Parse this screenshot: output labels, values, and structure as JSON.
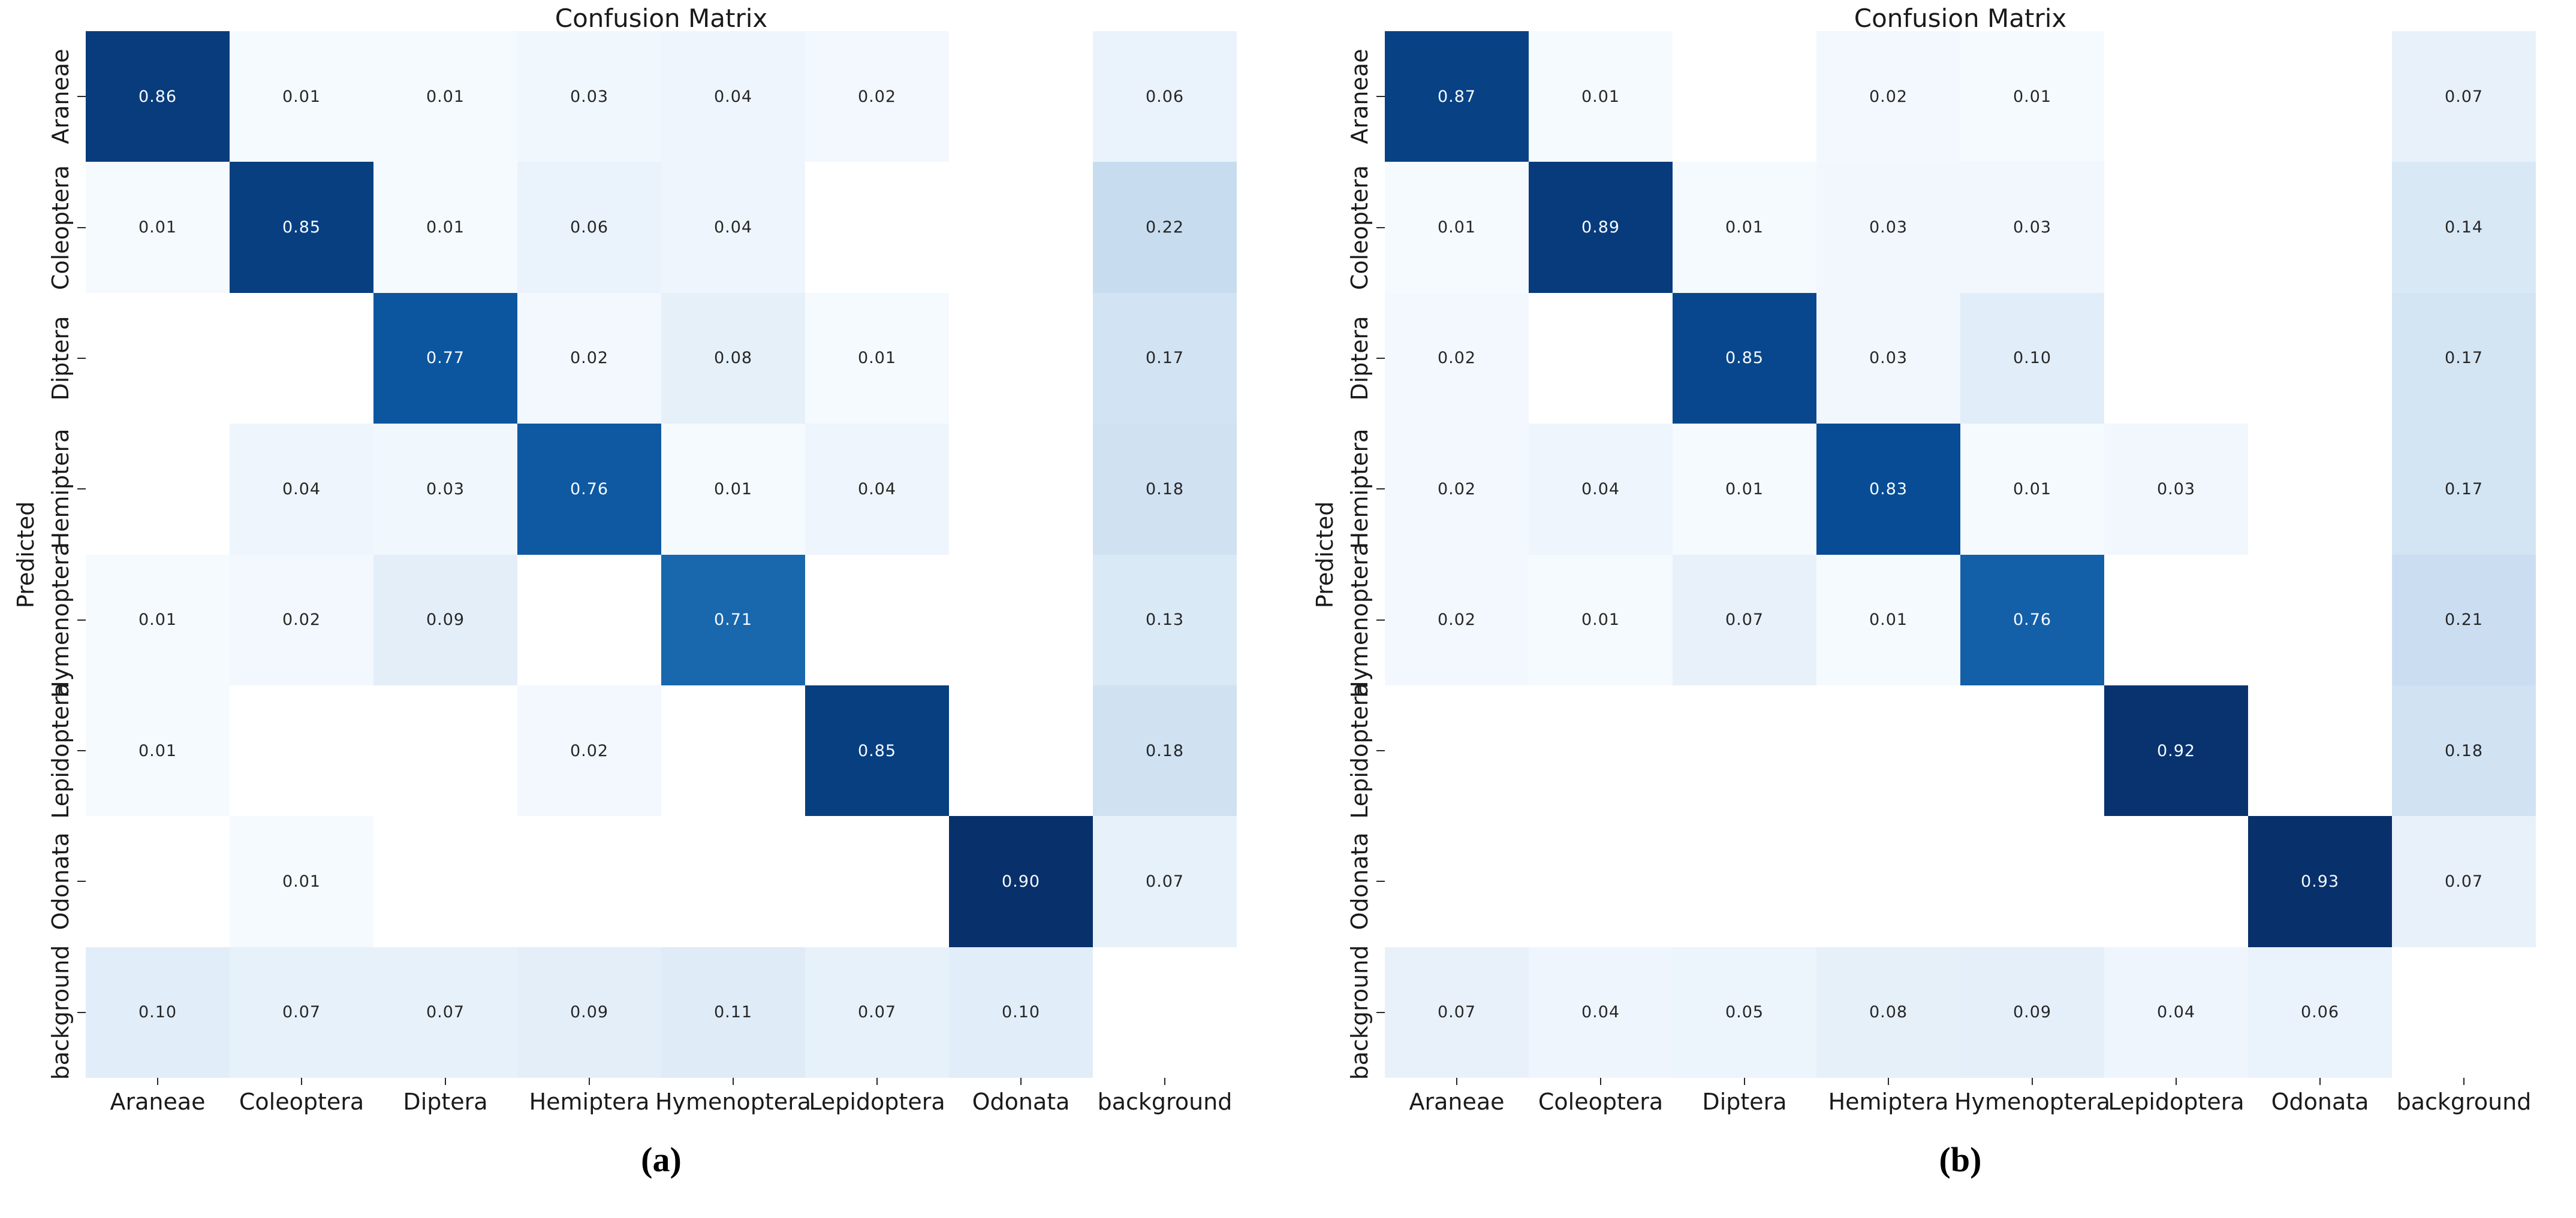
{
  "figure": {
    "description": "Two normalized confusion matrices shown side by side",
    "colors": {
      "background": "#ffffff",
      "blank_cell": "#ffffff",
      "annotation_dark": "#262626",
      "annotation_light": "#f7fbff",
      "diagonal_dark": "#08306b"
    }
  },
  "chart_data": [
    {
      "type": "heatmap",
      "title": "Confusion Matrix",
      "caption": "(a)",
      "ylabel": "Predicted",
      "xlabel": "",
      "colormap": "Blues",
      "vmin": 0,
      "grid": false,
      "legend": "none",
      "categories": [
        "Araneae",
        "Coleoptera",
        "Diptera",
        "Hemiptera",
        "Hymenoptera",
        "Lepidoptera",
        "Odonata",
        "background"
      ],
      "matrix": [
        [
          0.86,
          0.01,
          0.01,
          0.03,
          0.04,
          0.02,
          null,
          0.06
        ],
        [
          0.01,
          0.85,
          0.01,
          0.06,
          0.04,
          null,
          null,
          0.22
        ],
        [
          null,
          null,
          0.77,
          0.02,
          0.08,
          0.01,
          null,
          0.17
        ],
        [
          null,
          0.04,
          0.03,
          0.76,
          0.01,
          0.04,
          null,
          0.18
        ],
        [
          0.01,
          0.02,
          0.09,
          null,
          0.71,
          null,
          null,
          0.13
        ],
        [
          0.01,
          null,
          null,
          0.02,
          null,
          0.85,
          null,
          0.18
        ],
        [
          null,
          0.01,
          null,
          null,
          null,
          null,
          0.9,
          0.07
        ],
        [
          0.1,
          0.07,
          0.07,
          0.09,
          0.11,
          0.07,
          0.1,
          null
        ]
      ]
    },
    {
      "type": "heatmap",
      "title": "Confusion Matrix",
      "caption": "(b)",
      "ylabel": "Predicted",
      "xlabel": "",
      "colormap": "Blues",
      "vmin": 0,
      "grid": false,
      "legend": "none",
      "categories": [
        "Araneae",
        "Coleoptera",
        "Diptera",
        "Hemiptera",
        "Hymenoptera",
        "Lepidoptera",
        "Odonata",
        "background"
      ],
      "matrix": [
        [
          0.87,
          0.01,
          null,
          0.02,
          0.01,
          null,
          null,
          0.07
        ],
        [
          0.01,
          0.89,
          0.01,
          0.03,
          0.03,
          null,
          null,
          0.14
        ],
        [
          0.02,
          null,
          0.85,
          0.03,
          0.1,
          null,
          null,
          0.17
        ],
        [
          0.02,
          0.04,
          0.01,
          0.83,
          0.01,
          0.03,
          null,
          0.17
        ],
        [
          0.02,
          0.01,
          0.07,
          0.01,
          0.76,
          null,
          null,
          0.21
        ],
        [
          null,
          null,
          null,
          null,
          null,
          0.92,
          null,
          0.18
        ],
        [
          null,
          null,
          null,
          null,
          null,
          null,
          0.93,
          0.07
        ],
        [
          0.07,
          0.04,
          0.05,
          0.08,
          0.09,
          0.04,
          0.06,
          null
        ]
      ]
    }
  ]
}
